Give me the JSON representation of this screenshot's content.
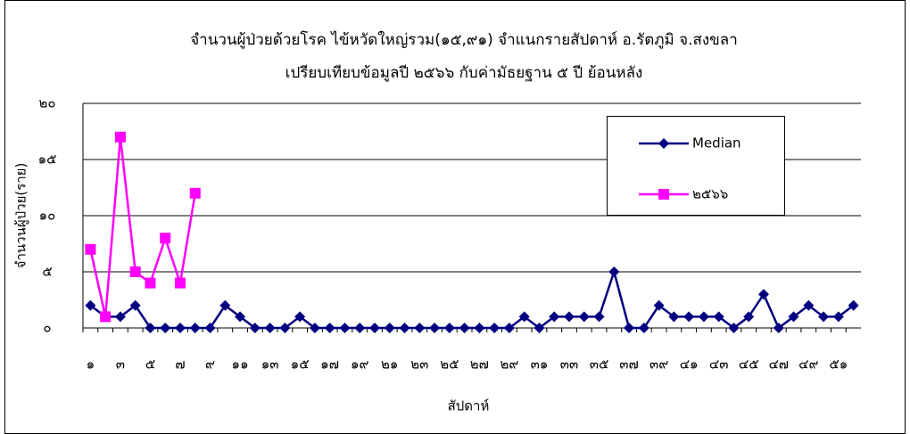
{
  "chart_data": {
    "type": "line",
    "title": "จำนวนผู้ป่วยด้วยโรค  ไข้หวัดใหญ่รวม(๑๕,๙๑)  จำแนกรายสัปดาห์     อ.รัตภูมิ จ.สงขลา",
    "subtitle": "เปรียบเทียบข้อมูลปี  ๒๕๖๖  กับค่ามัธยฐาน ๕ ปี ย้อนหลัง",
    "x_label": "สัปดาห์",
    "y_label": "จำนวนผู้ป่วย(ราย)",
    "categories": [
      "๑",
      null,
      "๓",
      null,
      "๕",
      null,
      "๗",
      null,
      "๙",
      null,
      "๑๑",
      null,
      "๑๓",
      null,
      "๑๕",
      null,
      "๑๗",
      null,
      "๑๙",
      null,
      "๒๑",
      null,
      "๒๓",
      null,
      "๒๕",
      null,
      "๒๗",
      null,
      "๒๙",
      null,
      "๓๑",
      null,
      "๓๓",
      null,
      "๓๕",
      null,
      "๓๗",
      null,
      "๓๙",
      null,
      "๔๑",
      null,
      "๔๓",
      null,
      "๔๕",
      null,
      "๔๗",
      null,
      "๔๙",
      null,
      "๕๑",
      null
    ],
    "series": [
      {
        "name": "Median",
        "color": "#000080",
        "marker": "diamond",
        "values": [
          2,
          1,
          1,
          2,
          0,
          0,
          0,
          0,
          0,
          2,
          1,
          0,
          0,
          0,
          1,
          0,
          0,
          0,
          0,
          0,
          0,
          0,
          0,
          0,
          0,
          0,
          0,
          0,
          0,
          1,
          0,
          1,
          1,
          1,
          1,
          5,
          0,
          0,
          2,
          1,
          1,
          1,
          1,
          0,
          1,
          3,
          0,
          1,
          2,
          1,
          1,
          2
        ]
      },
      {
        "name": "๒๕๖๖",
        "color": "#ff00ff",
        "marker": "square",
        "values": [
          7,
          1,
          17,
          5,
          4,
          8,
          4,
          12,
          null,
          null,
          null,
          null,
          null,
          null,
          null,
          null,
          null,
          null,
          null,
          null,
          null,
          null,
          null,
          null,
          null,
          null,
          null,
          null,
          null,
          null,
          null,
          null,
          null,
          null,
          null,
          null,
          null,
          null,
          null,
          null,
          null,
          null,
          null,
          null,
          null,
          null,
          null,
          null,
          null,
          null,
          null,
          null
        ]
      }
    ],
    "ylim": [
      0,
      20
    ],
    "yticks": [
      {
        "value": 0,
        "label": "๐"
      },
      {
        "value": 5,
        "label": "๕"
      },
      {
        "value": 10,
        "label": "๑๐"
      },
      {
        "value": 15,
        "label": "๑๕"
      },
      {
        "value": 20,
        "label": "๒๐"
      }
    ],
    "grid": true
  }
}
